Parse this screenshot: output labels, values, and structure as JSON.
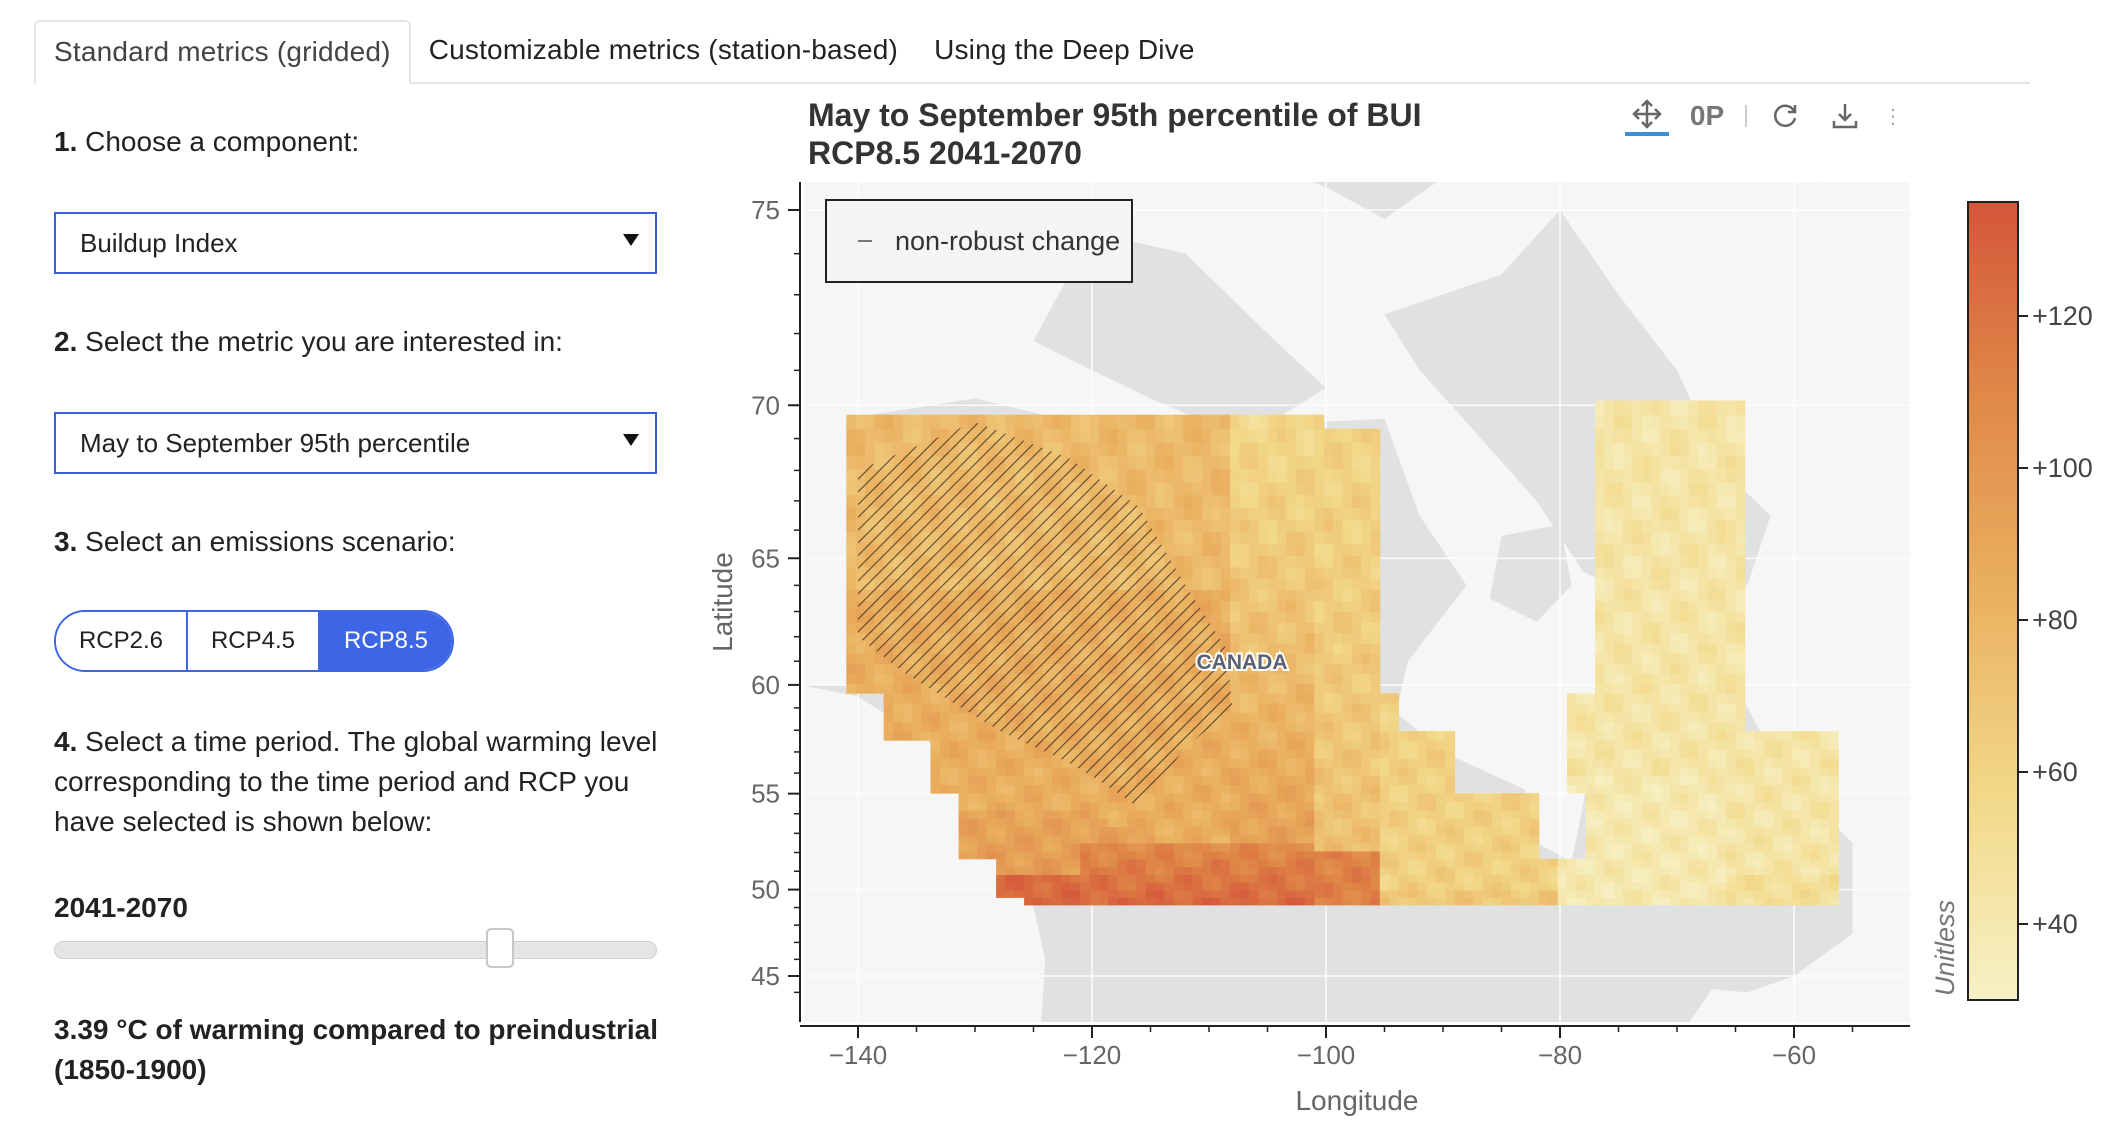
{
  "tabs": [
    {
      "label": "Standard metrics (gridded)",
      "active": true
    },
    {
      "label": "Customizable metrics (station-based)",
      "active": false
    },
    {
      "label": "Using the Deep Dive",
      "active": false
    }
  ],
  "steps": {
    "s1_num": "1.",
    "s1_text": "Choose a component:",
    "component_value": "Buildup Index",
    "s2_num": "2.",
    "s2_text": "Select the metric you are interested in:",
    "metric_value": "May to September 95th percentile",
    "s3_num": "3.",
    "s3_text": "Select an emissions scenario:",
    "scenarios": [
      "RCP2.6",
      "RCP4.5",
      "RCP8.5"
    ],
    "selected_scenario": "RCP8.5",
    "s4_num": "4.",
    "s4_line1": "Select a time period. The global warming level",
    "s4_line2": "corresponding to the time period and RCP you",
    "s4_line3": "have selected is shown below:",
    "period": "2041-2070",
    "slider_fraction": 0.74,
    "warming_line1": "3.39 °C of warming compared to preindustrial",
    "warming_line2": "(1850-1900)"
  },
  "toolbar": {
    "icons": [
      "pan-icon",
      "wheel-zoom-icon",
      "reset-icon",
      "save-icon"
    ],
    "active": "pan-icon",
    "zoom_glyph": "0P"
  },
  "chart_data": {
    "type": "heatmap",
    "title_line1": "May to September 95th percentile of BUI",
    "title_line2": "RCP8.5 2041-2070",
    "xlabel": "Longitude",
    "ylabel": "Latitude",
    "xlim": [
      -145,
      -50
    ],
    "x_ticks": [
      -140,
      -120,
      -100,
      -80,
      -60
    ],
    "x_tick_labels": [
      "−140",
      "−120",
      "−100",
      "−80",
      "−60"
    ],
    "y_ticks": [
      45,
      50,
      55,
      60,
      65,
      70,
      75
    ],
    "y_tick_labels": [
      "45",
      "50",
      "55",
      "60",
      "65",
      "70",
      "75"
    ],
    "y_scale": "mercator",
    "legend": {
      "entry": "non-robust change",
      "placement": "top-left"
    },
    "map_label": "CANADA",
    "colorbar": {
      "label": "Unitless",
      "range": [
        30,
        135
      ],
      "ticks": [
        40,
        60,
        80,
        100,
        120
      ],
      "tick_labels": [
        "+40",
        "+60",
        "+80",
        "+100",
        "+120"
      ],
      "colors": [
        "#f7f1c6",
        "#f2d98a",
        "#eab262",
        "#e08a48",
        "#d4563a"
      ]
    },
    "regions": [
      {
        "name": "yukon-nwt-west",
        "value": 85,
        "hatched": true
      },
      {
        "name": "nwt-east-nunavut-south",
        "value": 62,
        "hatched": false
      },
      {
        "name": "bc-south",
        "value": 125,
        "hatched": false
      },
      {
        "name": "prairies-south",
        "value": 128,
        "hatched": false
      },
      {
        "name": "ontario",
        "value": 62,
        "hatched": false
      },
      {
        "name": "quebec-labrador",
        "value": 40,
        "hatched": false
      },
      {
        "name": "maritimes",
        "value": 50,
        "hatched": false
      }
    ],
    "colors": {
      "land": "#dfe1e3",
      "water": "#f6f6f6",
      "grid": "#ffffff"
    }
  }
}
